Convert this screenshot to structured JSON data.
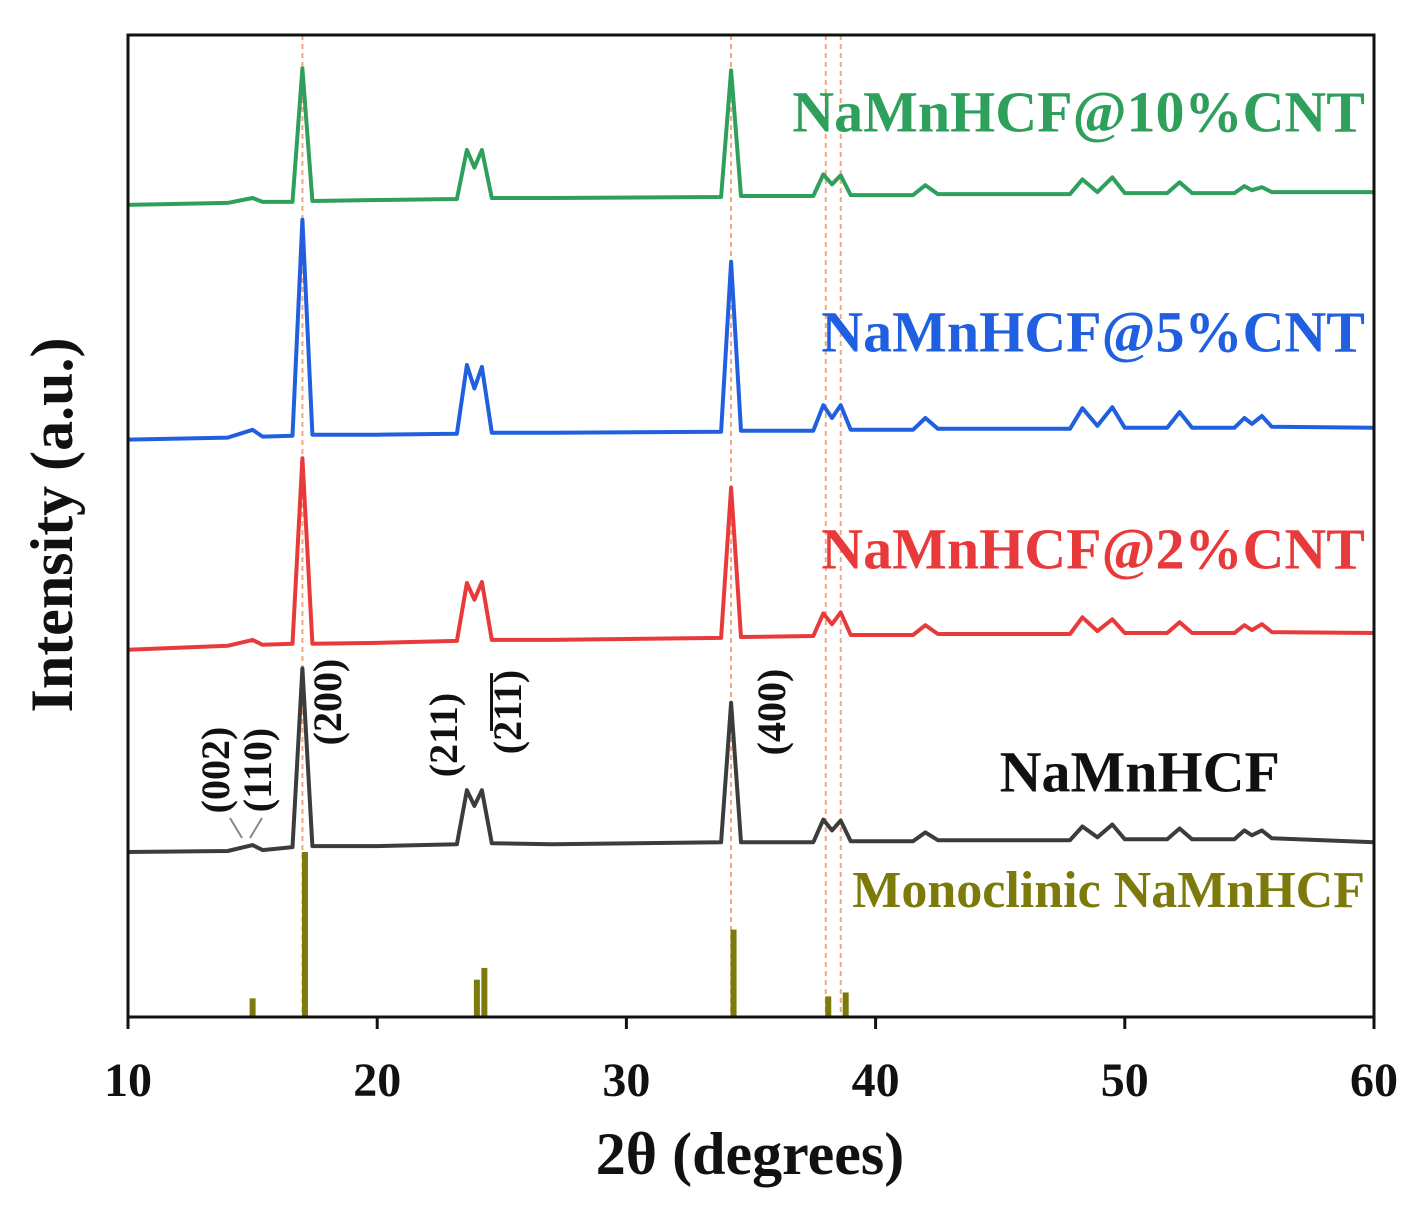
{
  "chart_data": {
    "type": "line",
    "x_label": "2θ (degrees)",
    "y_label": "Intensity (a.u.)",
    "xlim": [
      10,
      60
    ],
    "xticks": [
      10,
      20,
      30,
      40,
      50,
      60
    ],
    "ylim": [
      0,
      100
    ],
    "x": [
      10,
      14,
      15,
      15.4,
      16.6,
      17,
      17.4,
      20,
      23.2,
      23.6,
      23.9,
      24.2,
      24.6,
      27,
      33.8,
      34.2,
      34.6,
      37.5,
      37.9,
      38.25,
      38.6,
      39,
      41.5,
      42,
      42.5,
      47.8,
      48.3,
      48.9,
      49.5,
      50,
      51.7,
      52.2,
      52.7,
      54.4,
      54.8,
      55.1,
      55.5,
      55.9,
      60
    ],
    "series": [
      {
        "name": "NaMnHCF@10%CNT",
        "color": "#2ea05c",
        "values": [
          82.7,
          82.9,
          83.4,
          83.0,
          83.0,
          96.6,
          83.1,
          83.2,
          83.3,
          88.3,
          86.5,
          88.3,
          83.4,
          83.4,
          83.5,
          96.4,
          83.6,
          83.6,
          85.8,
          84.8,
          85.7,
          83.7,
          83.7,
          84.7,
          83.8,
          83.8,
          85.3,
          84.0,
          85.5,
          83.9,
          83.9,
          85.0,
          83.9,
          83.9,
          84.6,
          84.2,
          84.5,
          84.0,
          84.0
        ]
      },
      {
        "name": "NaMnHCF@5%CNT",
        "color": "#1f5fe0",
        "values": [
          58.8,
          59.0,
          59.8,
          59.1,
          59.2,
          81.2,
          59.3,
          59.3,
          59.4,
          66.4,
          64.0,
          66.2,
          59.5,
          59.5,
          59.6,
          76.9,
          59.7,
          59.7,
          62.3,
          61.0,
          62.3,
          59.8,
          59.8,
          61.0,
          59.9,
          59.9,
          62.0,
          60.2,
          62.1,
          60.0,
          60.0,
          61.6,
          60.0,
          60.0,
          61.0,
          60.4,
          61.2,
          60.1,
          60.0
        ]
      },
      {
        "name": "NaMnHCF@2%CNT",
        "color": "#e83a3a",
        "values": [
          37.4,
          37.8,
          38.4,
          37.9,
          38.0,
          56.9,
          38.0,
          38.1,
          38.3,
          44.2,
          42.5,
          44.3,
          38.4,
          38.4,
          38.6,
          53.9,
          38.7,
          38.8,
          41.1,
          40.0,
          41.2,
          38.9,
          38.9,
          39.9,
          39.0,
          39.0,
          40.7,
          39.3,
          40.5,
          39.1,
          39.1,
          40.2,
          39.1,
          39.1,
          39.9,
          39.4,
          40.0,
          39.2,
          39.1
        ]
      },
      {
        "name": "NaMnHCF",
        "color": "#3c3c3c",
        "values": [
          16.8,
          16.9,
          17.5,
          17.0,
          17.3,
          35.5,
          17.4,
          17.4,
          17.6,
          23.1,
          21.5,
          23.1,
          17.7,
          17.6,
          17.8,
          32.0,
          17.8,
          17.8,
          20.1,
          19.0,
          20.0,
          17.9,
          17.9,
          18.8,
          18.0,
          18.0,
          19.4,
          18.3,
          19.6,
          18.1,
          18.1,
          19.2,
          18.1,
          18.1,
          19.0,
          18.5,
          19.0,
          18.2,
          17.8
        ]
      }
    ],
    "reference": {
      "type": "bar",
      "name": "Monoclinic NaMnHCF",
      "color": "#7d7a0c",
      "x": [
        15.0,
        17.1,
        24.0,
        24.3,
        34.3,
        38.1,
        38.8
      ],
      "values": [
        1.9,
        16.8,
        3.8,
        5.0,
        8.9,
        2.1,
        2.5
      ]
    },
    "reference_lines": {
      "color": "#f4a582",
      "x": [
        17.0,
        34.2,
        38.0,
        38.6
      ]
    },
    "annotations": [
      "(002)",
      "(110)",
      "(200)",
      "(211)",
      "(2̅1̅1̅)",
      "(400)"
    ]
  }
}
